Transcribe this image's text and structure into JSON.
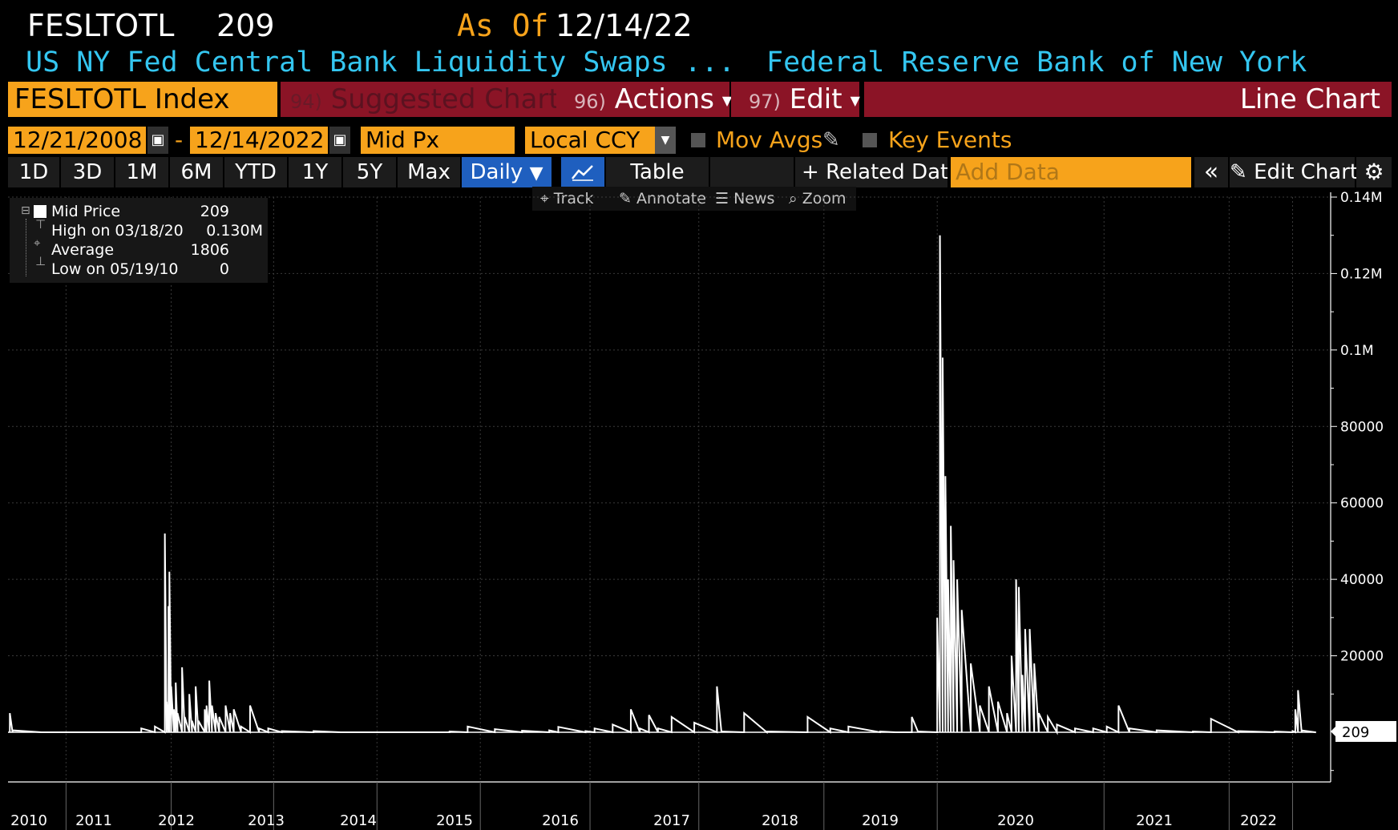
{
  "header": {
    "ticker": "FESLTOTL",
    "last_value": "209",
    "as_of_label": "As Of",
    "as_of_date": "12/14/22",
    "description": "US NY Fed Central Bank Liquidity Swaps ...",
    "source": "Federal Reserve Bank of New York"
  },
  "menubar": {
    "security": "FESLTOTL Index",
    "suggested_num": "94)",
    "suggested_label": "Suggested Charts",
    "actions_num": "96)",
    "actions_label": "Actions",
    "edit_num": "97)",
    "edit_label": "Edit",
    "chart_type": "Line Chart"
  },
  "controls": {
    "start_date": "12/21/2008",
    "dash": "-",
    "end_date": "12/14/2022",
    "price_field": "Mid Px",
    "currency": "Local CCY",
    "mov_avgs": "Mov Avgs",
    "key_events": "Key Events"
  },
  "range_buttons": [
    "1D",
    "3D",
    "1M",
    "6M",
    "YTD",
    "1Y",
    "5Y",
    "Max"
  ],
  "periodicity": "Daily",
  "table_label": "Table",
  "related_data": "Related Data",
  "add_data_placeholder": "Add Data",
  "edit_chart": "Edit Chart",
  "toolbar": {
    "track": "Track",
    "annotate": "Annotate",
    "news": "News",
    "zoom": "Zoom"
  },
  "legend": {
    "series": "Mid Price",
    "series_value": "209",
    "high_label": "High on 03/18/20",
    "high_value": "0.130M",
    "avg_label": "Average",
    "avg_value": "1806",
    "low_label": "Low on 05/19/10",
    "low_value": "0"
  },
  "colors": {
    "orange": "#f7a31b",
    "maroon": "#8b1426",
    "cyan": "#34c6f0",
    "blue_active": "#1f5fbf"
  },
  "chart_data": {
    "type": "line",
    "series": [
      {
        "name": "Mid Price",
        "points": [
          [
            2009.95,
            5000
          ],
          [
            2009.98,
            500
          ],
          [
            2010.3,
            0
          ],
          [
            2010.6,
            0
          ],
          [
            2011.2,
            0
          ],
          [
            2011.4,
            1000
          ],
          [
            2011.55,
            1500
          ],
          [
            2011.66,
            52000
          ],
          [
            2011.68,
            8000
          ],
          [
            2011.7,
            33000
          ],
          [
            2011.71,
            42000
          ],
          [
            2011.73,
            12000
          ],
          [
            2011.76,
            6000
          ],
          [
            2011.78,
            13000
          ],
          [
            2011.8,
            5000
          ],
          [
            2011.85,
            17000
          ],
          [
            2011.88,
            4000
          ],
          [
            2011.93,
            10000
          ],
          [
            2011.96,
            3000
          ],
          [
            2012.0,
            12000
          ],
          [
            2012.03,
            3000
          ],
          [
            2012.1,
            6000
          ],
          [
            2012.12,
            7000
          ],
          [
            2012.15,
            13500
          ],
          [
            2012.18,
            7000
          ],
          [
            2012.22,
            5000
          ],
          [
            2012.26,
            4000
          ],
          [
            2012.33,
            7000
          ],
          [
            2012.38,
            5000
          ],
          [
            2012.42,
            6000
          ],
          [
            2012.5,
            1500
          ],
          [
            2012.6,
            7000
          ],
          [
            2012.7,
            1000
          ],
          [
            2012.8,
            1000
          ],
          [
            2012.95,
            300
          ],
          [
            2013.3,
            300
          ],
          [
            2013.6,
            0
          ],
          [
            2014.4,
            0
          ],
          [
            2014.8,
            200
          ],
          [
            2015.0,
            1500
          ],
          [
            2015.3,
            800
          ],
          [
            2015.6,
            400
          ],
          [
            2015.9,
            500
          ],
          [
            2016.0,
            1400
          ],
          [
            2016.3,
            300
          ],
          [
            2016.4,
            1000
          ],
          [
            2016.6,
            2000
          ],
          [
            2016.8,
            6000
          ],
          [
            2016.9,
            1000
          ],
          [
            2017.0,
            4500
          ],
          [
            2017.1,
            1000
          ],
          [
            2017.25,
            4000
          ],
          [
            2017.5,
            2500
          ],
          [
            2017.75,
            12000
          ],
          [
            2017.8,
            200
          ],
          [
            2018.05,
            5000
          ],
          [
            2018.3,
            200
          ],
          [
            2018.75,
            4000
          ],
          [
            2019.0,
            1000
          ],
          [
            2019.2,
            1500
          ],
          [
            2019.55,
            200
          ],
          [
            2019.72,
            0
          ],
          [
            2019.9,
            4000
          ],
          [
            2019.97,
            200
          ],
          [
            2020.18,
            30000
          ],
          [
            2020.21,
            130000
          ],
          [
            2020.24,
            98000
          ],
          [
            2020.27,
            67000
          ],
          [
            2020.3,
            40000
          ],
          [
            2020.33,
            54000
          ],
          [
            2020.36,
            45000
          ],
          [
            2020.4,
            40000
          ],
          [
            2020.45,
            32000
          ],
          [
            2020.55,
            18000
          ],
          [
            2020.65,
            7000
          ],
          [
            2020.75,
            12000
          ],
          [
            2020.85,
            8000
          ],
          [
            2020.95,
            5000
          ],
          [
            2021.0,
            20000
          ],
          [
            2021.05,
            40000
          ],
          [
            2021.08,
            38000
          ],
          [
            2021.12,
            15000
          ],
          [
            2021.15,
            27000
          ],
          [
            2021.2,
            27000
          ],
          [
            2021.25,
            18000
          ],
          [
            2021.3,
            5000
          ],
          [
            2021.4,
            4000
          ],
          [
            2021.5,
            2000
          ],
          [
            2021.7,
            1000
          ],
          [
            2021.9,
            1000
          ],
          [
            2022.05,
            1500
          ],
          [
            2022.18,
            7000
          ],
          [
            2022.3,
            1000
          ],
          [
            2022.6,
            500
          ],
          [
            2023.0,
            200
          ],
          [
            2023.2,
            3500
          ],
          [
            2023.5,
            300
          ],
          [
            2023.9,
            200
          ],
          [
            2024.1,
            300
          ],
          [
            2024.13,
            6000
          ],
          [
            2024.16,
            11000
          ],
          [
            2024.2,
            500
          ],
          [
            2024.35,
            209
          ]
        ]
      }
    ],
    "x_tick_labels": [
      "2010",
      "2011",
      "2012",
      "2013",
      "2014",
      "2015",
      "2016",
      "2017",
      "2018",
      "2019",
      "2020",
      "2021",
      "2022"
    ],
    "y_tick_labels": [
      "20000",
      "40000",
      "60000",
      "80000",
      "0.1M",
      "0.12M",
      "0.14M"
    ],
    "y_ticks": [
      20000,
      40000,
      60000,
      80000,
      100000,
      120000,
      140000
    ],
    "ylim": [
      -13000,
      140000
    ],
    "last_label": "209",
    "grid": true
  }
}
